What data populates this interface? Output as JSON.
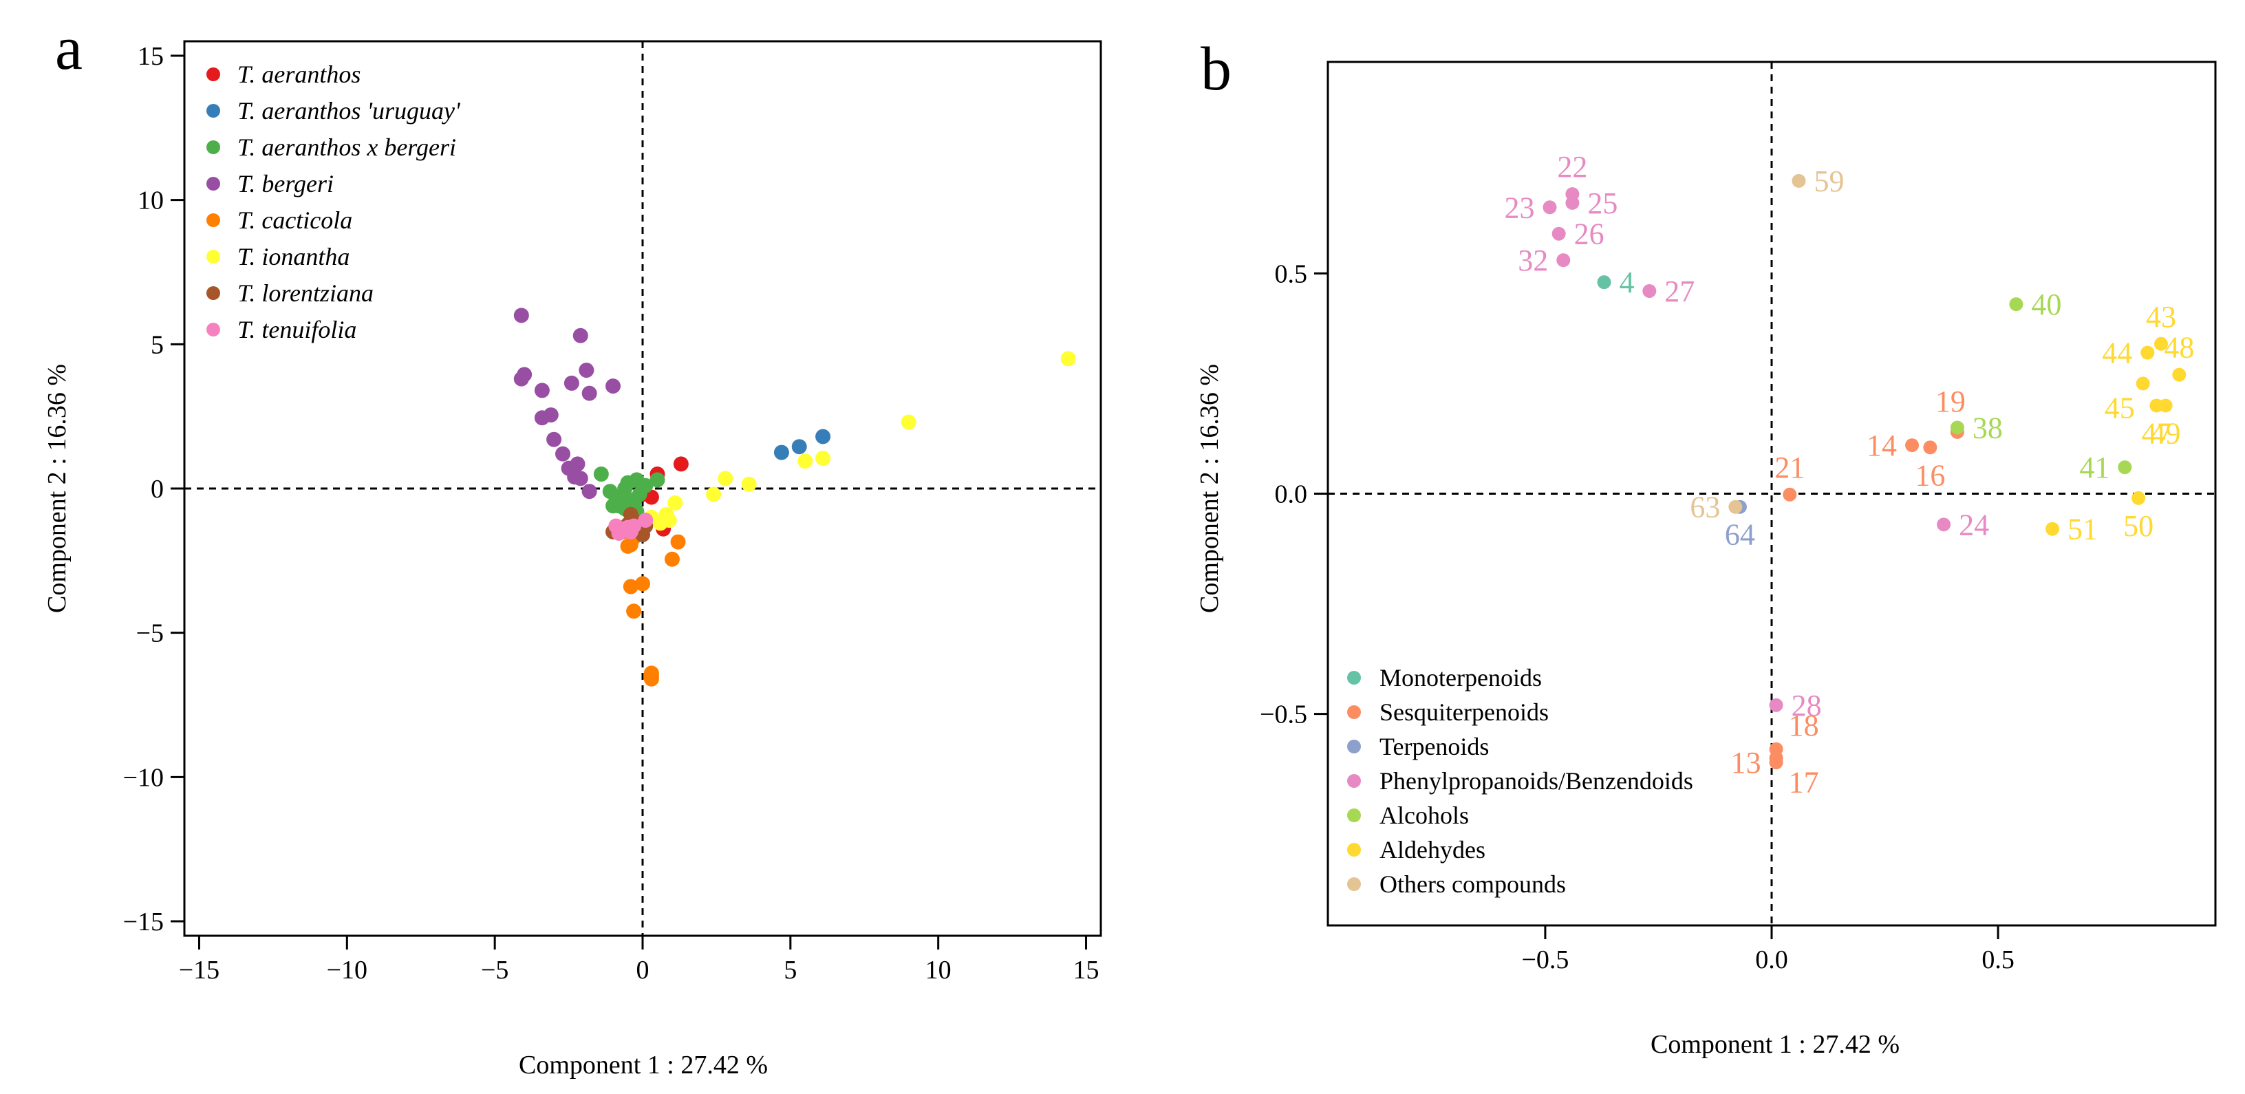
{
  "chart_data": [
    {
      "panel": "a",
      "type": "scatter",
      "xlabel": "Component 1 : 27.42 %",
      "ylabel": "Component 2 : 16.36 %",
      "xlim": [
        -15.5,
        15.5
      ],
      "ylim": [
        -15.5,
        15.5
      ],
      "xticks": [
        -15,
        -10,
        -5,
        0,
        5,
        10,
        15
      ],
      "yticks": [
        -15,
        -10,
        -5,
        0,
        5,
        10,
        15
      ],
      "reference_lines": {
        "x": 0,
        "y": 0,
        "style": "dashed"
      },
      "legend_position": "top-left",
      "series": [
        {
          "name": "T. aeranthos",
          "color": "#E41A1C",
          "points": [
            [
              0.5,
              0.5
            ],
            [
              1.3,
              0.85
            ],
            [
              0.3,
              -0.3
            ],
            [
              0.7,
              -1.4
            ],
            [
              0.0,
              -0.2
            ]
          ]
        },
        {
          "name": "T. aeranthos 'uruguay'",
          "color": "#377EB8",
          "points": [
            [
              4.7,
              1.25
            ],
            [
              5.3,
              1.45
            ],
            [
              6.1,
              1.8
            ]
          ]
        },
        {
          "name": "T. aeranthos x bergeri",
          "color": "#4DAF4A",
          "points": [
            [
              -1.4,
              0.5
            ],
            [
              -1.1,
              -0.1
            ],
            [
              -0.9,
              -0.3
            ],
            [
              -0.8,
              -0.6
            ],
            [
              -0.6,
              0.0
            ],
            [
              -0.5,
              0.2
            ],
            [
              -0.4,
              -0.4
            ],
            [
              -0.3,
              -0.5
            ],
            [
              -0.2,
              0.3
            ],
            [
              -0.1,
              -0.2
            ],
            [
              0.1,
              0.1
            ],
            [
              -0.6,
              -0.7
            ],
            [
              -1.0,
              -0.6
            ],
            [
              -0.2,
              -0.8
            ],
            [
              -0.5,
              -0.4
            ],
            [
              0.5,
              0.3
            ]
          ]
        },
        {
          "name": "T. bergeri",
          "color": "#984EA3",
          "points": [
            [
              -4.1,
              6.0
            ],
            [
              -4.1,
              3.8
            ],
            [
              -4.0,
              3.95
            ],
            [
              -3.4,
              3.4
            ],
            [
              -2.1,
              5.3
            ],
            [
              -1.9,
              4.1
            ],
            [
              -1.8,
              3.3
            ],
            [
              -2.4,
              3.65
            ],
            [
              -1.0,
              3.55
            ],
            [
              -3.4,
              2.45
            ],
            [
              -3.1,
              2.55
            ],
            [
              -3.0,
              1.7
            ],
            [
              -2.7,
              1.2
            ],
            [
              -2.5,
              0.7
            ],
            [
              -2.2,
              0.85
            ],
            [
              -2.3,
              0.4
            ],
            [
              -2.1,
              0.35
            ],
            [
              -1.8,
              -0.1
            ]
          ]
        },
        {
          "name": "T. cacticola",
          "color": "#FF7F00",
          "points": [
            [
              -0.4,
              -3.4
            ],
            [
              0.0,
              -3.3
            ],
            [
              -0.3,
              -4.25
            ],
            [
              0.3,
              -6.4
            ],
            [
              0.3,
              -6.6
            ],
            [
              0.3,
              -6.5
            ],
            [
              1.2,
              -1.85
            ],
            [
              1.0,
              -2.45
            ],
            [
              -0.4,
              -1.95
            ],
            [
              -0.3,
              -1.7
            ],
            [
              -0.5,
              -2.0
            ]
          ]
        },
        {
          "name": "T. ionantha",
          "color": "#FFFF33",
          "points": [
            [
              14.4,
              4.5
            ],
            [
              9.0,
              2.3
            ],
            [
              5.5,
              0.95
            ],
            [
              6.1,
              1.05
            ],
            [
              2.8,
              0.35
            ],
            [
              3.6,
              0.15
            ],
            [
              2.4,
              -0.2
            ],
            [
              1.1,
              -0.5
            ],
            [
              0.8,
              -0.9
            ],
            [
              0.6,
              -1.2
            ],
            [
              0.9,
              -1.1
            ],
            [
              0.3,
              -1.0
            ]
          ]
        },
        {
          "name": "T. lorentziana",
          "color": "#A65628",
          "points": [
            [
              -1.0,
              -1.5
            ],
            [
              -0.5,
              -1.25
            ],
            [
              -0.3,
              -1.1
            ],
            [
              0.1,
              -1.3
            ],
            [
              -0.7,
              -1.5
            ],
            [
              -0.4,
              -0.9
            ],
            [
              0.0,
              -1.6
            ],
            [
              -0.2,
              -1.4
            ]
          ]
        },
        {
          "name": "T. tenuifolia",
          "color": "#F781BF",
          "points": [
            [
              -0.9,
              -1.3
            ],
            [
              -0.7,
              -1.4
            ],
            [
              -0.5,
              -1.35
            ],
            [
              -0.3,
              -1.3
            ],
            [
              -0.8,
              -1.55
            ],
            [
              -0.6,
              -1.45
            ],
            [
              0.1,
              -1.1
            ],
            [
              -0.4,
              -1.5
            ]
          ]
        }
      ]
    },
    {
      "panel": "b",
      "type": "scatter",
      "xlabel": "Component 1 : 27.42 %",
      "ylabel": "Component 2 : 16.36 %",
      "xlim": [
        -0.98,
        0.98
      ],
      "ylim": [
        -0.98,
        0.98
      ],
      "xticks": [
        -0.5,
        0.0,
        0.5
      ],
      "yticks": [
        -0.5,
        0.0,
        0.5
      ],
      "xtick_labels": [
        "−0.5",
        "0.0",
        "0.5"
      ],
      "ytick_labels": [
        "−0.5",
        "0.0",
        "0.5"
      ],
      "reference_lines": {
        "x": 0,
        "y": 0,
        "style": "dashed"
      },
      "legend_position": "bottom-left",
      "categories": [
        {
          "name": "Monoterpenoids",
          "color": "#66C2A5"
        },
        {
          "name": "Sesquiterpenoids",
          "color": "#FC8D62"
        },
        {
          "name": "Terpenoids",
          "color": "#8DA0CB"
        },
        {
          "name": "Phenylpropanoids/Benzendoids",
          "color": "#E78AC3"
        },
        {
          "name": "Alcohols",
          "color": "#A6D854"
        },
        {
          "name": "Aldehydes",
          "color": "#FFD92F"
        },
        {
          "name": "Others compounds",
          "color": "#E5C494"
        }
      ],
      "points": [
        {
          "label": "4",
          "x": -0.37,
          "y": 0.48,
          "category": 0,
          "label_pos": "right"
        },
        {
          "label": "13",
          "x": 0.01,
          "y": -0.61,
          "category": 1,
          "label_pos": "left"
        },
        {
          "label": "14",
          "x": 0.31,
          "y": 0.11,
          "category": 1,
          "label_pos": "left"
        },
        {
          "label": "16",
          "x": 0.35,
          "y": 0.105,
          "category": 1,
          "label_pos": "below"
        },
        {
          "label": "17",
          "x": 0.01,
          "y": -0.6,
          "category": 1,
          "label_pos": "below-right"
        },
        {
          "label": "18",
          "x": 0.01,
          "y": -0.58,
          "category": 1,
          "label_pos": "above-right"
        },
        {
          "label": "19",
          "x": 0.41,
          "y": 0.14,
          "category": 1,
          "label_pos": "above-left"
        },
        {
          "label": "21",
          "x": 0.04,
          "y": -0.002,
          "category": 1,
          "label_pos": "above"
        },
        {
          "label": "64",
          "x": -0.07,
          "y": -0.03,
          "category": 2,
          "label_pos": "below"
        },
        {
          "label": "22",
          "x": -0.44,
          "y": 0.68,
          "category": 3,
          "label_pos": "above"
        },
        {
          "label": "23",
          "x": -0.49,
          "y": 0.65,
          "category": 3,
          "label_pos": "left"
        },
        {
          "label": "24",
          "x": 0.38,
          "y": -0.07,
          "category": 3,
          "label_pos": "right"
        },
        {
          "label": "25",
          "x": -0.44,
          "y": 0.66,
          "category": 3,
          "label_pos": "right"
        },
        {
          "label": "26",
          "x": -0.47,
          "y": 0.59,
          "category": 3,
          "label_pos": "right"
        },
        {
          "label": "27",
          "x": -0.27,
          "y": 0.46,
          "category": 3,
          "label_pos": "right"
        },
        {
          "label": "28",
          "x": 0.01,
          "y": -0.48,
          "category": 3,
          "label_pos": "right"
        },
        {
          "label": "32",
          "x": -0.46,
          "y": 0.53,
          "category": 3,
          "label_pos": "left"
        },
        {
          "label": "38",
          "x": 0.41,
          "y": 0.15,
          "category": 4,
          "label_pos": "right"
        },
        {
          "label": "40",
          "x": 0.54,
          "y": 0.43,
          "category": 4,
          "label_pos": "right"
        },
        {
          "label": "41",
          "x": 0.78,
          "y": 0.06,
          "category": 4,
          "label_pos": "left"
        },
        {
          "label": "43",
          "x": 0.86,
          "y": 0.34,
          "category": 5,
          "label_pos": "above"
        },
        {
          "label": "44",
          "x": 0.83,
          "y": 0.32,
          "category": 5,
          "label_pos": "left"
        },
        {
          "label": "45",
          "x": 0.82,
          "y": 0.25,
          "category": 5,
          "label_pos": "below-left"
        },
        {
          "label": "47",
          "x": 0.85,
          "y": 0.2,
          "category": 5,
          "label_pos": "below"
        },
        {
          "label": "48",
          "x": 0.9,
          "y": 0.27,
          "category": 5,
          "label_pos": "above"
        },
        {
          "label": "49",
          "x": 0.87,
          "y": 0.2,
          "category": 5,
          "label_pos": "below"
        },
        {
          "label": "50",
          "x": 0.81,
          "y": -0.01,
          "category": 5,
          "label_pos": "below"
        },
        {
          "label": "51",
          "x": 0.62,
          "y": -0.08,
          "category": 5,
          "label_pos": "right"
        },
        {
          "label": "59",
          "x": 0.06,
          "y": 0.71,
          "category": 6,
          "label_pos": "right"
        },
        {
          "label": "63",
          "x": -0.08,
          "y": -0.03,
          "category": 6,
          "label_pos": "left"
        }
      ]
    }
  ]
}
